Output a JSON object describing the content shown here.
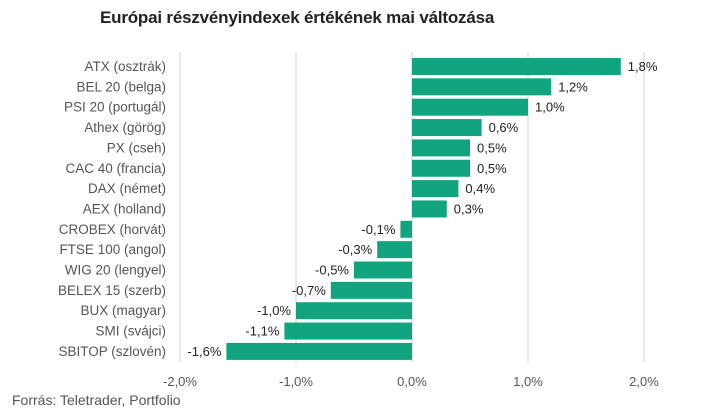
{
  "title": "Európai részvényindexek értékének mai változása",
  "source": "Forrás: Teletrader, Portfolio",
  "chart_data": {
    "type": "bar",
    "orientation": "horizontal",
    "title": "Európai részvényindexek értékének mai változása",
    "categories": [
      "ATX (osztrák)",
      "BEL 20 (belga)",
      "PSI 20 (portugál)",
      "Athex (görög)",
      "PX (cseh)",
      "CAC 40 (francia)",
      "DAX (német)",
      "AEX (holland)",
      "CROBEX (horvát)",
      "FTSE 100 (angol)",
      "WIG 20 (lengyel)",
      "BELEX 15 (szerb)",
      "BUX (magyar)",
      "SMI (svájci)",
      "SBITOP (szlovén)"
    ],
    "values": [
      1.8,
      1.2,
      1.0,
      0.6,
      0.5,
      0.5,
      0.4,
      0.3,
      -0.1,
      -0.3,
      -0.5,
      -0.7,
      -1.0,
      -1.1,
      -1.6
    ],
    "value_labels": [
      "1,8%",
      "1,2%",
      "1,0%",
      "0,6%",
      "0,5%",
      "0,5%",
      "0,4%",
      "0,3%",
      "-0,1%",
      "-0,3%",
      "-0,5%",
      "-0,7%",
      "-1,0%",
      "-1,1%",
      "-1,6%"
    ],
    "xlim": [
      -2.0,
      2.0
    ],
    "xticks": [
      -2.0,
      -1.0,
      0.0,
      1.0,
      2.0
    ],
    "xtick_labels": [
      "-2,0%",
      "-1,0%",
      "0,0%",
      "1,0%",
      "2,0%"
    ],
    "grid": true,
    "bar_color": "#12a47e",
    "grid_color": "#cfcfcf"
  }
}
